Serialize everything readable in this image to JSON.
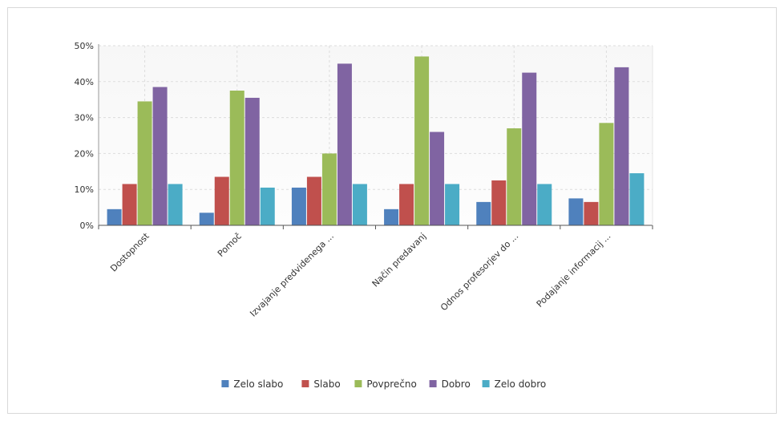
{
  "chart_data": {
    "type": "bar",
    "categories": [
      "Dostopnost",
      "Pomoč",
      "Izvajanje predvidenega ...",
      "Način predavanj",
      "Odnos profesorjev do ...",
      "Podajanje informacij ..."
    ],
    "series": [
      {
        "name": "Zelo slabo",
        "color": "#4f81bd",
        "values": [
          4.5,
          3.5,
          10.5,
          4.5,
          6.5,
          7.5
        ]
      },
      {
        "name": "Slabo",
        "color": "#c0504d",
        "values": [
          11.5,
          13.5,
          13.5,
          11.5,
          12.5,
          6.5
        ]
      },
      {
        "name": "Povprečno",
        "color": "#9bbb59",
        "values": [
          34.5,
          37.5,
          20,
          47,
          27,
          28.5
        ]
      },
      {
        "name": "Dobro",
        "color": "#8064a2",
        "values": [
          38.5,
          35.5,
          45,
          26,
          42.5,
          44
        ]
      },
      {
        "name": "Zelo dobro",
        "color": "#4bacc6",
        "values": [
          11.5,
          10.5,
          11.5,
          11.5,
          11.5,
          14.5
        ]
      }
    ],
    "yticks": [
      "0%",
      "10%",
      "20%",
      "30%",
      "40%",
      "50%"
    ],
    "ylim": [
      0,
      50
    ],
    "grid": true,
    "legend_position": "bottom"
  }
}
